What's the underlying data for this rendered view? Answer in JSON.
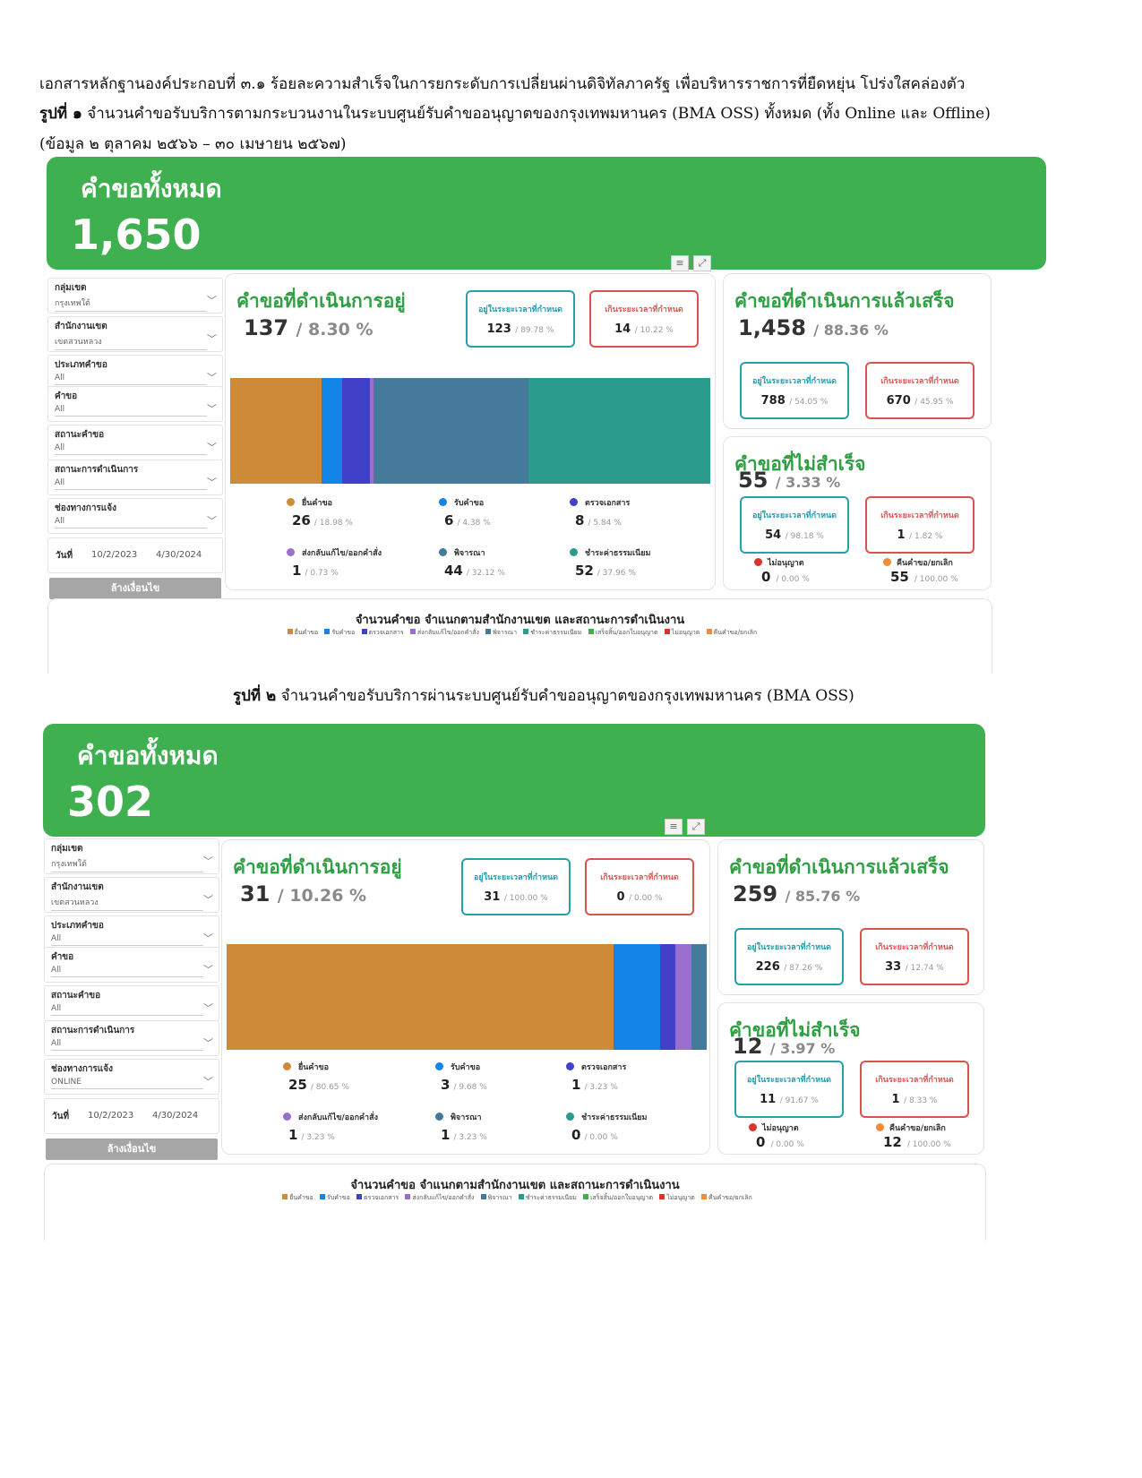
{
  "doc": {
    "line1": "เอกสารหลักฐานองค์ประกอบที่ ๓.๑ ร้อยละความสำเร็จในการยกระดับการเปลี่ยนผ่านดิจิทัลภาครัฐ เพื่อบริหารราชการที่ยืดหยุ่น โปร่งใสคล่องตัว",
    "fig1_label": "รูปที่ ๑",
    "fig1_text": " จำนวนคำขอรับบริการตามกระบวนงานในระบบศูนย์รับคำขออนุญาตของกรุงเทพมหานคร (BMA OSS) ทั้งหมด (ทั้ง Online และ Offline)",
    "fig1_period": "(ข้อมูล ๒ ตุลาคม ๒๕๖๖ – ๓๐ เมษายน ๒๕๖๗)",
    "fig2_label": "รูปที่ ๒",
    "fig2_text": " จำนวนคำขอรับบริการผ่านระบบศูนย์รับคำขออนุญาตของกรุงเทพมหานคร (BMA OSS)"
  },
  "colors": {
    "green": "#3fb04f",
    "submit": "#cd8b3a",
    "receive": "#1384e8",
    "check": "#4040c8",
    "return": "#9b6fd0",
    "consider": "#457a9a",
    "pay": "#2a9b8c"
  },
  "legend_row": [
    {
      "label": "ยื่นคำขอ",
      "color": "#cd8b3a"
    },
    {
      "label": "รับคำขอ",
      "color": "#1384e8"
    },
    {
      "label": "ตรวจเอกสาร",
      "color": "#4040c8"
    },
    {
      "label": "ส่งกลับแก้ไข/ออกคำสั่ง",
      "color": "#9b6fd0"
    },
    {
      "label": "พิจารณา",
      "color": "#457a9a"
    },
    {
      "label": "ชำระค่าธรรมเนียม",
      "color": "#2a9b8c"
    },
    {
      "label": "เสร็จสิ้น/ออกใบอนุญาต",
      "color": "#3fb04f"
    },
    {
      "label": "ไม่อนุญาต",
      "color": "#d9342b"
    },
    {
      "label": "คืนคำขอ/ยกเลิก",
      "color": "#f08c3a"
    }
  ],
  "dash1": {
    "total_title": "คำขอทั้งหมด",
    "total_value": "1,650",
    "filters": [
      {
        "label": "กลุ่มเขต",
        "value": "กรุงเทพใต้"
      },
      {
        "label": "สำนักงานเขต",
        "value": "เขตสวนหลวง"
      },
      {
        "label": "ประเภทคำขอ",
        "value": "All"
      },
      {
        "label": "คำขอ",
        "value": "All"
      },
      {
        "label": "สถานะคำขอ",
        "value": "All"
      },
      {
        "label": "สถานะการดำเนินการ",
        "value": "All"
      },
      {
        "label": "ช่องทางการแจ้ง",
        "value": "All"
      }
    ],
    "date_label": "วันที่",
    "date_from": "10/2/2023",
    "date_to": "4/30/2024",
    "clear_label": "ล้างเงื่อนไข",
    "in_progress": {
      "title": "คำขอที่ดำเนินการอยู่",
      "count": "137",
      "pct": "/ 8.30 %",
      "within_label": "อยู่ในระยะเวลาที่กำหนด",
      "within_val": "123",
      "within_pct": "/ 89.78 %",
      "over_label": "เกินระยะเวลาที่กำหนด",
      "over_val": "14",
      "over_pct": "/ 10.22 %"
    },
    "stages": [
      {
        "name": "ยื่นคำขอ",
        "value": "26",
        "pct": "/ 18.98 %",
        "share": 18.98,
        "color": "#cd8b3a"
      },
      {
        "name": "รับคำขอ",
        "value": "6",
        "pct": "/ 4.38 %",
        "share": 4.38,
        "color": "#1384e8"
      },
      {
        "name": "ตรวจเอกสาร",
        "value": "8",
        "pct": "/ 5.84 %",
        "share": 5.84,
        "color": "#4040c8"
      },
      {
        "name": "ส่งกลับแก้ไข/ออกคำสั่ง",
        "value": "1",
        "pct": "/ 0.73 %",
        "share": 0.73,
        "color": "#9b6fd0"
      },
      {
        "name": "พิจารณา",
        "value": "44",
        "pct": "/ 32.12 %",
        "share": 32.12,
        "color": "#457a9a"
      },
      {
        "name": "ชำระค่าธรรมเนียม",
        "value": "52",
        "pct": "/ 37.96 %",
        "share": 37.96,
        "color": "#2a9b8c"
      }
    ],
    "done": {
      "title": "คำขอที่ดำเนินการแล้วเสร็จ",
      "count": "1,458",
      "pct": "/ 88.36 %",
      "within_label": "อยู่ในระยะเวลาที่กำหนด",
      "within_val": "788",
      "within_pct": "/ 54.05 %",
      "over_label": "เกินระยะเวลาที่กำหนด",
      "over_val": "670",
      "over_pct": "/ 45.95 %"
    },
    "fail": {
      "title": "คำขอที่ไม่สำเร็จ",
      "count": "55",
      "pct": "/ 3.33 %",
      "within_label": "อยู่ในระยะเวลาที่กำหนด",
      "within_val": "54",
      "within_pct": "/ 98.18 %",
      "over_label": "เกินระยะเวลาที่กำหนด",
      "over_val": "1",
      "over_pct": "/ 1.82 %",
      "denied_label": "ไม่อนุญาต",
      "denied_val": "0",
      "denied_pct": "/ 0.00 %",
      "returned_label": "คืนคำขอ/ยกเลิก",
      "returned_val": "55",
      "returned_pct": "/ 100.00 %"
    },
    "bottom_title": "จำนวนคำขอ  จำแนกตามสำนักงานเขต และสถานะการดำเนินงาน"
  },
  "dash2": {
    "total_title": "คำขอทั้งหมด",
    "total_value": "302",
    "filters": [
      {
        "label": "กลุ่มเขต",
        "value": "กรุงเทพใต้"
      },
      {
        "label": "สำนักงานเขต",
        "value": "เขตสวนหลวง"
      },
      {
        "label": "ประเภทคำขอ",
        "value": "All"
      },
      {
        "label": "คำขอ",
        "value": "All"
      },
      {
        "label": "สถานะคำขอ",
        "value": "All"
      },
      {
        "label": "สถานะการดำเนินการ",
        "value": "All"
      },
      {
        "label": "ช่องทางการแจ้ง",
        "value": "ONLINE"
      }
    ],
    "date_label": "วันที่",
    "date_from": "10/2/2023",
    "date_to": "4/30/2024",
    "clear_label": "ล้างเงื่อนไข",
    "in_progress": {
      "title": "คำขอที่ดำเนินการอยู่",
      "count": "31",
      "pct": "/ 10.26 %",
      "within_label": "อยู่ในระยะเวลาที่กำหนด",
      "within_val": "31",
      "within_pct": "/ 100.00 %",
      "over_label": "เกินระยะเวลาที่กำหนด",
      "over_val": "0",
      "over_pct": "/ 0.00 %"
    },
    "stages": [
      {
        "name": "ยื่นคำขอ",
        "value": "25",
        "pct": "/ 80.65 %",
        "share": 80.65,
        "color": "#cd8b3a"
      },
      {
        "name": "รับคำขอ",
        "value": "3",
        "pct": "/ 9.68 %",
        "share": 9.68,
        "color": "#1384e8"
      },
      {
        "name": "ตรวจเอกสาร",
        "value": "1",
        "pct": "/ 3.23 %",
        "share": 3.23,
        "color": "#4040c8"
      },
      {
        "name": "ส่งกลับแก้ไข/ออกคำสั่ง",
        "value": "1",
        "pct": "/ 3.23 %",
        "share": 3.23,
        "color": "#9b6fd0"
      },
      {
        "name": "พิจารณา",
        "value": "1",
        "pct": "/ 3.23 %",
        "share": 3.23,
        "color": "#457a9a"
      },
      {
        "name": "ชำระค่าธรรมเนียม",
        "value": "0",
        "pct": "/ 0.00 %",
        "share": 0,
        "color": "#2a9b8c"
      }
    ],
    "done": {
      "title": "คำขอที่ดำเนินการแล้วเสร็จ",
      "count": "259",
      "pct": "/ 85.76 %",
      "within_label": "อยู่ในระยะเวลาที่กำหนด",
      "within_val": "226",
      "within_pct": "/ 87.26 %",
      "over_label": "เกินระยะเวลาที่กำหนด",
      "over_val": "33",
      "over_pct": "/ 12.74 %"
    },
    "fail": {
      "title": "คำขอที่ไม่สำเร็จ",
      "count": "12",
      "pct": "/ 3.97 %",
      "within_label": "อยู่ในระยะเวลาที่กำหนด",
      "within_val": "11",
      "within_pct": "/ 91.67 %",
      "over_label": "เกินระยะเวลาที่กำหนด",
      "over_val": "1",
      "over_pct": "/ 8.33 %",
      "denied_label": "ไม่อนุญาต",
      "denied_val": "0",
      "denied_pct": "/ 0.00 %",
      "returned_label": "คืนคำขอ/ยกเลิก",
      "returned_val": "12",
      "returned_pct": "/ 100.00 %"
    },
    "bottom_title": "จำนวนคำขอ  จำแนกตามสำนักงานเขต และสถานะการดำเนินงาน"
  }
}
